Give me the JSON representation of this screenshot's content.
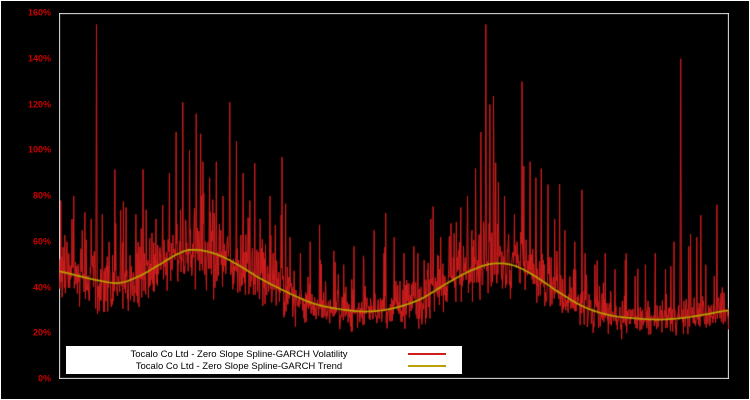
{
  "chart_data": {
    "type": "line",
    "title": "",
    "xlabel": "",
    "ylabel": "",
    "ylim": [
      0,
      160
    ],
    "ytick_labels": [
      "0%",
      "20%",
      "40%",
      "60%",
      "80%",
      "100%",
      "120%",
      "140%",
      "160%"
    ],
    "xtick_labels": [],
    "grid": false,
    "background_color": "#000000",
    "axis_label_color": "#cc0000",
    "frame_color": "#e6e6e6",
    "legend": {
      "position": "bottom-left-inside",
      "background": "#ffffff",
      "text_color": "#000000"
    },
    "series": [
      {
        "name": "Tocalo Co Ltd - Zero Slope Spline-GARCH Volatility",
        "color": "#cf1d1d",
        "style": "noisy-daily",
        "approx_range_pct": [
          18,
          157
        ]
      },
      {
        "name": "Tocalo Co Ltd - Zero Slope Spline-GARCH Trend",
        "color": "#b8a100",
        "style": "smooth",
        "keypoints_x_fraction_y_pct": [
          [
            0.0,
            47.0
          ],
          [
            0.03,
            45.0
          ],
          [
            0.06,
            43.0
          ],
          [
            0.09,
            42.0
          ],
          [
            0.12,
            45.0
          ],
          [
            0.15,
            50.0
          ],
          [
            0.18,
            55.0
          ],
          [
            0.2,
            56.5
          ],
          [
            0.23,
            55.0
          ],
          [
            0.26,
            51.0
          ],
          [
            0.3,
            44.0
          ],
          [
            0.34,
            38.0
          ],
          [
            0.38,
            33.0
          ],
          [
            0.42,
            30.5
          ],
          [
            0.46,
            29.5
          ],
          [
            0.5,
            31.0
          ],
          [
            0.54,
            35.0
          ],
          [
            0.58,
            42.0
          ],
          [
            0.62,
            48.0
          ],
          [
            0.65,
            50.5
          ],
          [
            0.68,
            49.5
          ],
          [
            0.71,
            45.0
          ],
          [
            0.74,
            39.0
          ],
          [
            0.78,
            32.0
          ],
          [
            0.82,
            28.0
          ],
          [
            0.86,
            26.5
          ],
          [
            0.9,
            26.0
          ],
          [
            0.94,
            27.0
          ],
          [
            0.97,
            28.5
          ],
          [
            1.0,
            30.0
          ]
        ]
      }
    ],
    "volatility_spikes_x_fraction_y_pct": [
      [
        0.003,
        78
      ],
      [
        0.012,
        60
      ],
      [
        0.022,
        80
      ],
      [
        0.035,
        65
      ],
      [
        0.048,
        70
      ],
      [
        0.056,
        155
      ],
      [
        0.065,
        72
      ],
      [
        0.075,
        60
      ],
      [
        0.085,
        68
      ],
      [
        0.1,
        75
      ],
      [
        0.115,
        72
      ],
      [
        0.13,
        74
      ],
      [
        0.145,
        70
      ],
      [
        0.155,
        76
      ],
      [
        0.165,
        90
      ],
      [
        0.175,
        108
      ],
      [
        0.185,
        121
      ],
      [
        0.195,
        100
      ],
      [
        0.205,
        116
      ],
      [
        0.215,
        95
      ],
      [
        0.225,
        88
      ],
      [
        0.235,
        95
      ],
      [
        0.245,
        80
      ],
      [
        0.255,
        121
      ],
      [
        0.265,
        104
      ],
      [
        0.275,
        90
      ],
      [
        0.285,
        78
      ],
      [
        0.3,
        70
      ],
      [
        0.315,
        80
      ],
      [
        0.333,
        97
      ],
      [
        0.345,
        62
      ],
      [
        0.36,
        55
      ],
      [
        0.375,
        60
      ],
      [
        0.39,
        52
      ],
      [
        0.41,
        56
      ],
      [
        0.425,
        50
      ],
      [
        0.44,
        58
      ],
      [
        0.455,
        52
      ],
      [
        0.47,
        65
      ],
      [
        0.485,
        55
      ],
      [
        0.5,
        62
      ],
      [
        0.515,
        55
      ],
      [
        0.53,
        58
      ],
      [
        0.545,
        52
      ],
      [
        0.555,
        70
      ],
      [
        0.57,
        62
      ],
      [
        0.585,
        68
      ],
      [
        0.6,
        75
      ],
      [
        0.61,
        80
      ],
      [
        0.622,
        92
      ],
      [
        0.63,
        108
      ],
      [
        0.637,
        155
      ],
      [
        0.643,
        120
      ],
      [
        0.649,
        97
      ],
      [
        0.656,
        86
      ],
      [
        0.665,
        80
      ],
      [
        0.68,
        72
      ],
      [
        0.691,
        130
      ],
      [
        0.703,
        95
      ],
      [
        0.712,
        88
      ],
      [
        0.72,
        92
      ],
      [
        0.73,
        85
      ],
      [
        0.74,
        70
      ],
      [
        0.755,
        65
      ],
      [
        0.77,
        60
      ],
      [
        0.785,
        55
      ],
      [
        0.8,
        50
      ],
      [
        0.815,
        55
      ],
      [
        0.83,
        48
      ],
      [
        0.845,
        52
      ],
      [
        0.86,
        45
      ],
      [
        0.875,
        50
      ],
      [
        0.89,
        55
      ],
      [
        0.905,
        48
      ],
      [
        0.918,
        60
      ],
      [
        0.928,
        140
      ],
      [
        0.94,
        58
      ],
      [
        0.952,
        62
      ],
      [
        0.965,
        50
      ],
      [
        0.978,
        45
      ],
      [
        0.99,
        40
      ]
    ],
    "noise_model": {
      "seed": 1337,
      "sigma": 0.16,
      "n_points": 1500,
      "burst_prob": 0.025,
      "burst_scale": 0.6
    }
  }
}
